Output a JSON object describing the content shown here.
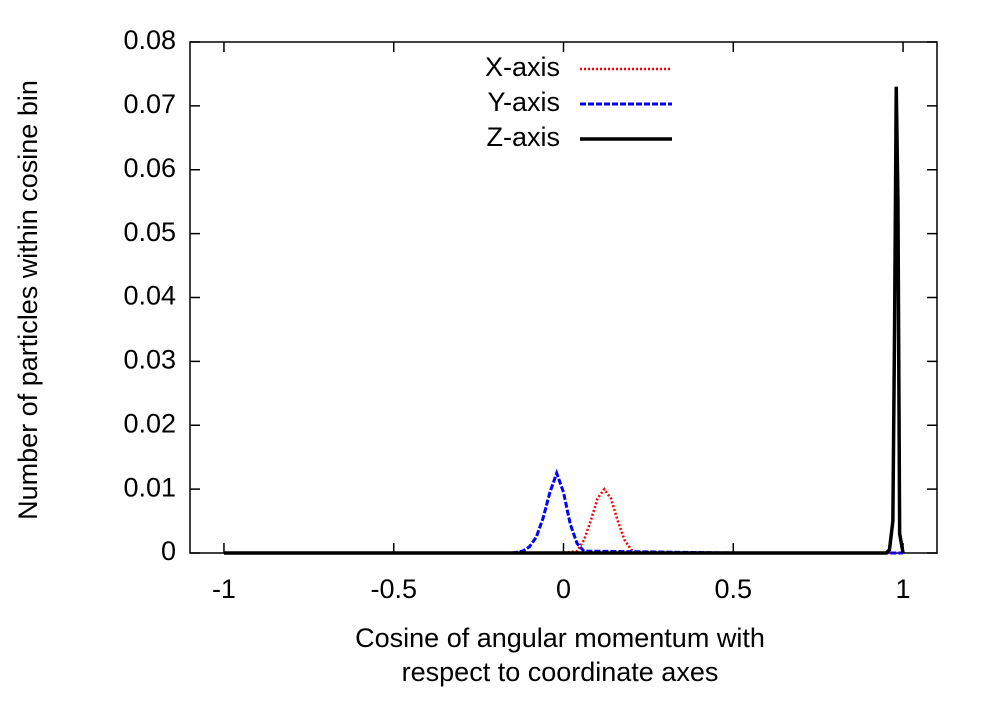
{
  "chart_data": {
    "type": "line",
    "xlabel": [
      "Cosine of angular momentum with",
      "respect to coordinate axes"
    ],
    "ylabel": "Number of particles within cosine bin",
    "xlim": [
      -1.1,
      1.1
    ],
    "xticks": [
      -1,
      -0.5,
      0,
      0.5,
      1
    ],
    "ylim": [
      0,
      0.08
    ],
    "yticks": [
      0,
      0.01,
      0.02,
      0.03,
      0.04,
      0.05,
      0.06,
      0.07,
      0.08
    ],
    "legend": "top-center",
    "series": [
      {
        "name": "X-axis",
        "color": "#ff0000",
        "dash": "dotted",
        "x": [
          -1,
          -0.5,
          0,
          0.04,
          0.06,
          0.08,
          0.1,
          0.12,
          0.14,
          0.16,
          0.18,
          0.2,
          0.22,
          0.5,
          1
        ],
        "values": [
          0,
          0,
          0,
          0.0003,
          0.002,
          0.005,
          0.0085,
          0.01,
          0.0085,
          0.005,
          0.002,
          0.0005,
          0,
          0,
          0
        ]
      },
      {
        "name": "Y-axis",
        "color": "#0000ff",
        "dash": "dashed",
        "x": [
          -1,
          -0.5,
          -0.15,
          -0.12,
          -0.1,
          -0.08,
          -0.06,
          -0.04,
          -0.02,
          0,
          0.02,
          0.04,
          0.06,
          0.5,
          1
        ],
        "values": [
          0,
          0,
          0,
          0.0003,
          0.001,
          0.0025,
          0.0055,
          0.0095,
          0.0125,
          0.0095,
          0.0045,
          0.0015,
          0.0003,
          0,
          0
        ]
      },
      {
        "name": "Z-axis",
        "color": "#000000",
        "dash": "solid",
        "x": [
          -1,
          0.5,
          0.95,
          0.96,
          0.97,
          0.975,
          0.98,
          0.985,
          0.99,
          1
        ],
        "values": [
          0,
          0,
          0,
          0.0005,
          0.005,
          0.035,
          0.073,
          0.055,
          0.003,
          0
        ]
      }
    ]
  }
}
